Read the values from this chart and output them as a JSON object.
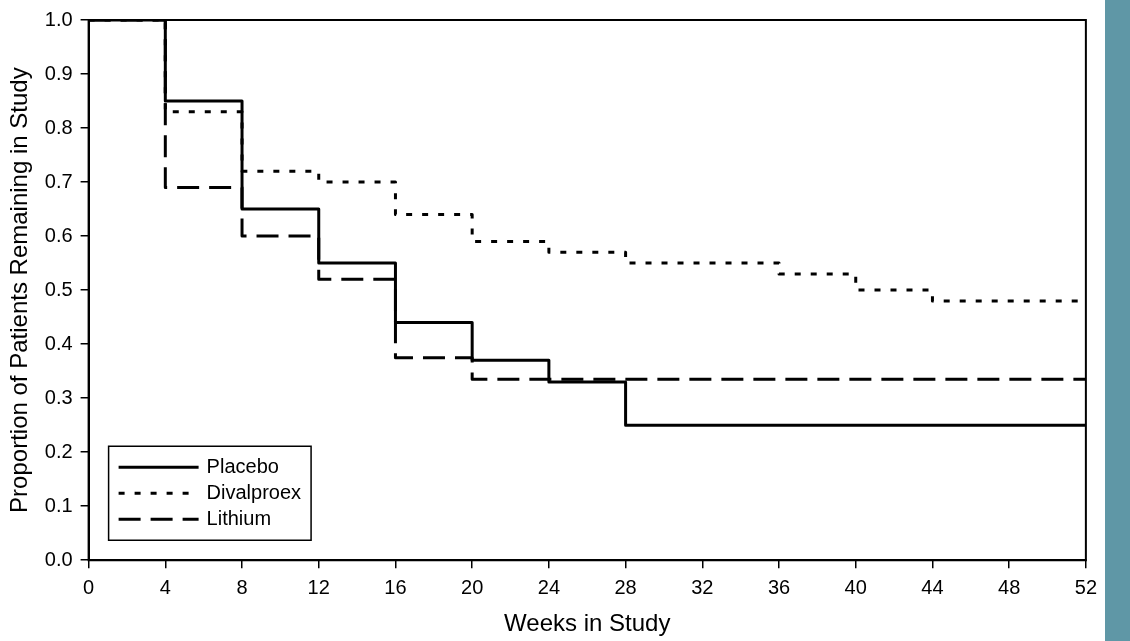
{
  "chart_data": {
    "type": "step",
    "xlabel": "Weeks in Study",
    "ylabel": "Proportion of Patients Remaining in Study",
    "x": [
      0,
      4,
      8,
      12,
      16,
      20,
      24,
      28,
      32,
      36,
      40,
      44,
      48,
      52
    ],
    "series": [
      {
        "name": "Placebo",
        "color": "#000000",
        "line_style": "solid",
        "values": [
          1.0,
          0.85,
          0.65,
          0.55,
          0.44,
          0.37,
          0.33,
          0.25,
          0.25,
          0.25,
          0.25,
          0.25,
          0.25,
          0.25
        ]
      },
      {
        "name": "Divalproex",
        "color": "#000000",
        "line_style": "dotted",
        "values": [
          1.0,
          0.83,
          0.72,
          0.7,
          0.64,
          0.59,
          0.57,
          0.55,
          0.55,
          0.53,
          0.5,
          0.48,
          0.48,
          0.48
        ]
      },
      {
        "name": "Lithium",
        "color": "#000000",
        "line_style": "dashed",
        "values": [
          1.0,
          0.69,
          0.6,
          0.52,
          0.375,
          0.335,
          0.335,
          0.335,
          0.335,
          0.335,
          0.335,
          0.335,
          0.335,
          0.335
        ]
      }
    ],
    "xlim": [
      0,
      52
    ],
    "xticks": [
      0,
      4,
      8,
      12,
      16,
      20,
      24,
      28,
      32,
      36,
      40,
      44,
      48,
      52
    ],
    "ylim": [
      0,
      1
    ],
    "yticks": [
      {
        "value": 0,
        "label": "0.0"
      },
      {
        "value": 0.1,
        "label": "0.1"
      },
      {
        "value": 0.2,
        "label": "0.2"
      },
      {
        "value": 0.3,
        "label": "0.3"
      },
      {
        "value": 0.4,
        "label": "0.4"
      },
      {
        "value": 0.5,
        "label": "0.5"
      },
      {
        "value": 0.6,
        "label": "0.6"
      },
      {
        "value": 0.7,
        "label": "0.7"
      },
      {
        "value": 0.8,
        "label": "0.8"
      },
      {
        "value": 0.9,
        "label": "0.9"
      },
      {
        "value": 1,
        "label": "1.0"
      }
    ],
    "grid": false,
    "legend": "bottom left",
    "marker": "none"
  }
}
